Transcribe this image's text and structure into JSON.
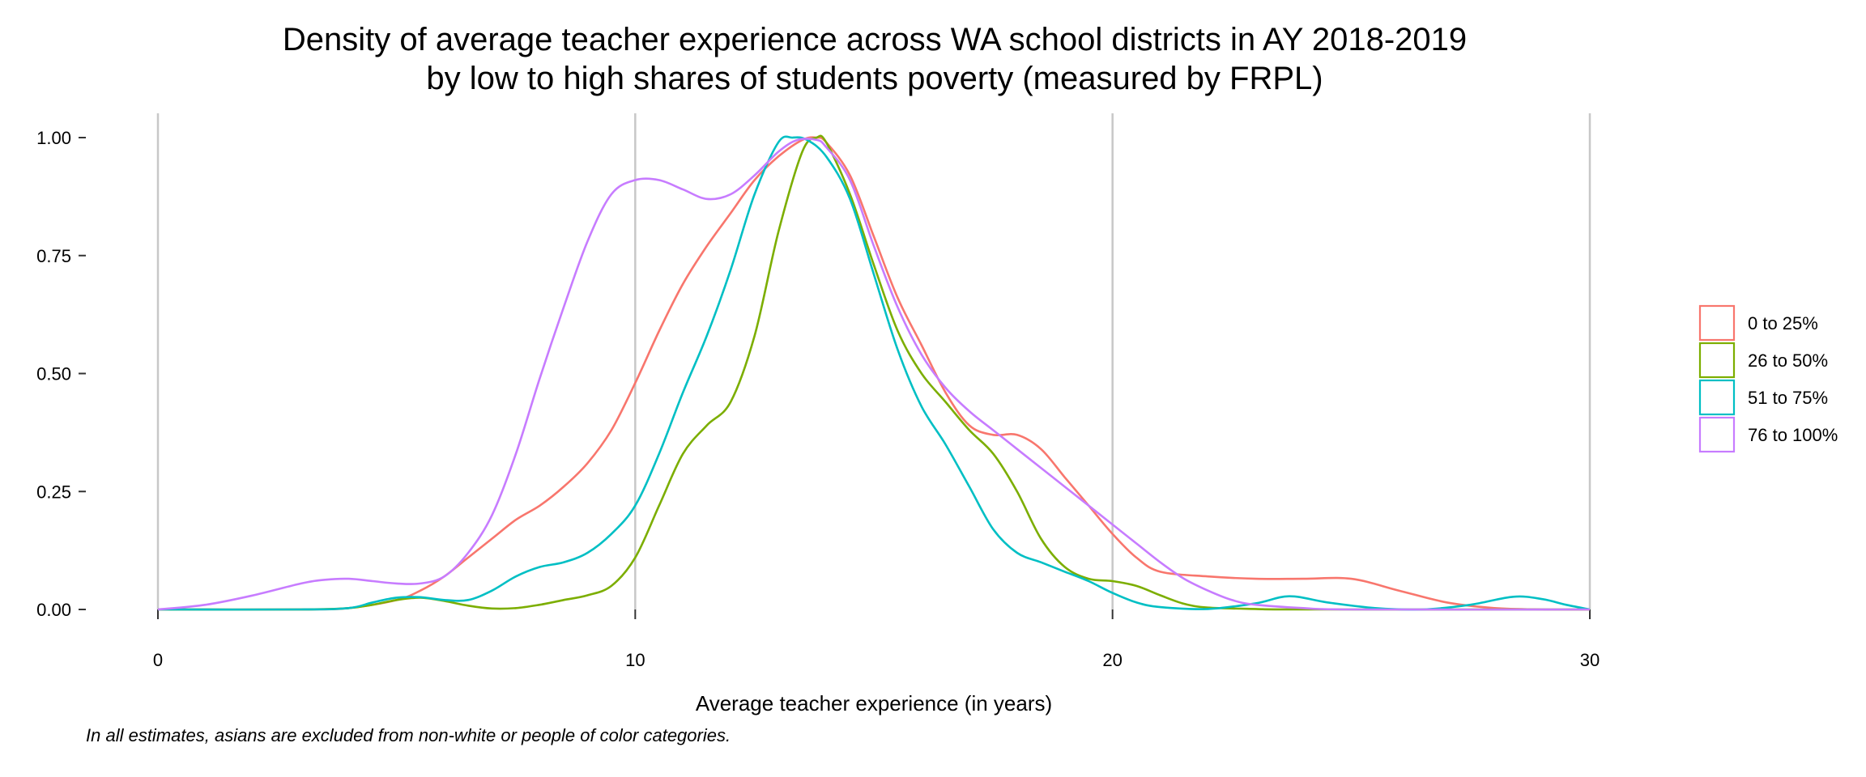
{
  "chart_data": {
    "type": "line",
    "title_lines": [
      "Density of average teacher experience across WA school districts in AY 2018-2019",
      "by low to high shares of students poverty (measured by FRPL)"
    ],
    "xlabel": "Average teacher experience (in years)",
    "ylabel": "",
    "caption": "In all estimates, asians are excluded from non-white or people of color categories.",
    "xlim": [
      0,
      30
    ],
    "ylim": [
      0,
      1
    ],
    "xticks": [
      0,
      10,
      20,
      30
    ],
    "xtick_labels": [
      "0",
      "10",
      "20",
      "30"
    ],
    "yticks": [
      0,
      0.25,
      0.5,
      0.75,
      1
    ],
    "ytick_labels": [
      "0.00",
      "0.25",
      "0.50",
      "0.75",
      "1.00"
    ],
    "grid": "vertical major lines",
    "legend_position": "right",
    "series": [
      {
        "name": "0 to 25%",
        "color": "#F8766D",
        "points": [
          [
            0,
            0
          ],
          [
            3,
            0
          ],
          [
            4,
            0.003
          ],
          [
            5,
            0.02
          ],
          [
            5.5,
            0.04
          ],
          [
            6,
            0.07
          ],
          [
            6.5,
            0.11
          ],
          [
            7,
            0.15
          ],
          [
            7.5,
            0.19
          ],
          [
            8,
            0.22
          ],
          [
            8.5,
            0.26
          ],
          [
            9,
            0.31
          ],
          [
            9.5,
            0.38
          ],
          [
            10,
            0.48
          ],
          [
            10.5,
            0.59
          ],
          [
            11,
            0.69
          ],
          [
            11.5,
            0.77
          ],
          [
            12,
            0.84
          ],
          [
            12.5,
            0.91
          ],
          [
            13,
            0.96
          ],
          [
            13.5,
            0.995
          ],
          [
            13.8,
            1.0
          ],
          [
            14,
            0.99
          ],
          [
            14.5,
            0.92
          ],
          [
            15,
            0.79
          ],
          [
            15.5,
            0.66
          ],
          [
            16,
            0.56
          ],
          [
            16.5,
            0.46
          ],
          [
            17,
            0.39
          ],
          [
            17.5,
            0.37
          ],
          [
            18,
            0.37
          ],
          [
            18.5,
            0.34
          ],
          [
            19,
            0.28
          ],
          [
            19.5,
            0.22
          ],
          [
            20,
            0.16
          ],
          [
            20.5,
            0.11
          ],
          [
            21,
            0.08
          ],
          [
            22,
            0.07
          ],
          [
            23,
            0.065
          ],
          [
            24,
            0.065
          ],
          [
            25,
            0.065
          ],
          [
            26,
            0.04
          ],
          [
            27,
            0.015
          ],
          [
            28,
            0.003
          ],
          [
            29,
            0
          ],
          [
            30,
            0
          ]
        ]
      },
      {
        "name": "26 to 50%",
        "color": "#7CAE00",
        "points": [
          [
            0,
            0
          ],
          [
            3,
            0
          ],
          [
            4,
            0.003
          ],
          [
            4.5,
            0.01
          ],
          [
            5,
            0.02
          ],
          [
            5.5,
            0.025
          ],
          [
            6,
            0.018
          ],
          [
            6.5,
            0.008
          ],
          [
            7,
            0.002
          ],
          [
            7.5,
            0.003
          ],
          [
            8,
            0.01
          ],
          [
            8.5,
            0.02
          ],
          [
            9,
            0.03
          ],
          [
            9.5,
            0.05
          ],
          [
            10,
            0.11
          ],
          [
            10.5,
            0.22
          ],
          [
            11,
            0.33
          ],
          [
            11.5,
            0.39
          ],
          [
            12,
            0.44
          ],
          [
            12.5,
            0.58
          ],
          [
            13,
            0.8
          ],
          [
            13.5,
            0.97
          ],
          [
            13.8,
            1.0
          ],
          [
            14,
            0.99
          ],
          [
            14.5,
            0.88
          ],
          [
            15,
            0.73
          ],
          [
            15.5,
            0.59
          ],
          [
            16,
            0.5
          ],
          [
            16.5,
            0.44
          ],
          [
            17,
            0.38
          ],
          [
            17.5,
            0.33
          ],
          [
            18,
            0.25
          ],
          [
            18.5,
            0.15
          ],
          [
            19,
            0.09
          ],
          [
            19.5,
            0.065
          ],
          [
            20,
            0.06
          ],
          [
            20.5,
            0.05
          ],
          [
            21,
            0.03
          ],
          [
            21.5,
            0.012
          ],
          [
            22,
            0.004
          ],
          [
            23,
            0.001
          ],
          [
            24,
            0
          ],
          [
            30,
            0
          ]
        ]
      },
      {
        "name": "51 to 75%",
        "color": "#00BFC4",
        "points": [
          [
            0,
            0
          ],
          [
            3,
            0
          ],
          [
            4,
            0.003
          ],
          [
            4.5,
            0.015
          ],
          [
            5,
            0.025
          ],
          [
            5.5,
            0.026
          ],
          [
            6,
            0.02
          ],
          [
            6.5,
            0.02
          ],
          [
            7,
            0.04
          ],
          [
            7.5,
            0.07
          ],
          [
            8,
            0.09
          ],
          [
            8.5,
            0.1
          ],
          [
            9,
            0.12
          ],
          [
            9.5,
            0.16
          ],
          [
            10,
            0.22
          ],
          [
            10.5,
            0.33
          ],
          [
            11,
            0.46
          ],
          [
            11.5,
            0.58
          ],
          [
            12,
            0.72
          ],
          [
            12.5,
            0.88
          ],
          [
            13,
            0.99
          ],
          [
            13.3,
            1.0
          ],
          [
            13.6,
            0.995
          ],
          [
            14,
            0.96
          ],
          [
            14.5,
            0.87
          ],
          [
            15,
            0.71
          ],
          [
            15.5,
            0.55
          ],
          [
            16,
            0.43
          ],
          [
            16.5,
            0.35
          ],
          [
            17,
            0.26
          ],
          [
            17.5,
            0.17
          ],
          [
            18,
            0.12
          ],
          [
            18.5,
            0.1
          ],
          [
            19,
            0.08
          ],
          [
            19.5,
            0.06
          ],
          [
            20,
            0.035
          ],
          [
            20.5,
            0.015
          ],
          [
            21,
            0.005
          ],
          [
            22,
            0.001
          ],
          [
            23,
            0.013
          ],
          [
            23.7,
            0.028
          ],
          [
            24.5,
            0.015
          ],
          [
            25.5,
            0.003
          ],
          [
            26.5,
            0
          ],
          [
            27.5,
            0.01
          ],
          [
            28.4,
            0.027
          ],
          [
            29,
            0.022
          ],
          [
            29.5,
            0.01
          ],
          [
            30,
            0
          ]
        ]
      },
      {
        "name": "76 to 100%",
        "color": "#C77CFF",
        "points": [
          [
            0,
            0
          ],
          [
            1,
            0.01
          ],
          [
            2,
            0.03
          ],
          [
            3,
            0.055
          ],
          [
            3.5,
            0.063
          ],
          [
            4,
            0.065
          ],
          [
            4.5,
            0.06
          ],
          [
            5,
            0.055
          ],
          [
            5.5,
            0.055
          ],
          [
            6,
            0.07
          ],
          [
            6.5,
            0.12
          ],
          [
            7,
            0.2
          ],
          [
            7.5,
            0.33
          ],
          [
            8,
            0.49
          ],
          [
            8.5,
            0.64
          ],
          [
            9,
            0.78
          ],
          [
            9.5,
            0.88
          ],
          [
            10,
            0.91
          ],
          [
            10.5,
            0.91
          ],
          [
            11,
            0.89
          ],
          [
            11.5,
            0.87
          ],
          [
            12,
            0.88
          ],
          [
            12.5,
            0.92
          ],
          [
            13,
            0.97
          ],
          [
            13.4,
            0.995
          ],
          [
            13.8,
            0.995
          ],
          [
            14,
            0.98
          ],
          [
            14.5,
            0.91
          ],
          [
            15,
            0.77
          ],
          [
            15.5,
            0.64
          ],
          [
            16,
            0.54
          ],
          [
            16.5,
            0.47
          ],
          [
            17,
            0.42
          ],
          [
            17.5,
            0.38
          ],
          [
            18,
            0.34
          ],
          [
            18.5,
            0.3
          ],
          [
            19,
            0.26
          ],
          [
            19.5,
            0.22
          ],
          [
            20,
            0.18
          ],
          [
            20.5,
            0.14
          ],
          [
            21,
            0.1
          ],
          [
            21.5,
            0.065
          ],
          [
            22,
            0.04
          ],
          [
            22.5,
            0.02
          ],
          [
            23,
            0.01
          ],
          [
            24,
            0.003
          ],
          [
            25,
            0
          ],
          [
            30,
            0
          ]
        ]
      }
    ]
  }
}
